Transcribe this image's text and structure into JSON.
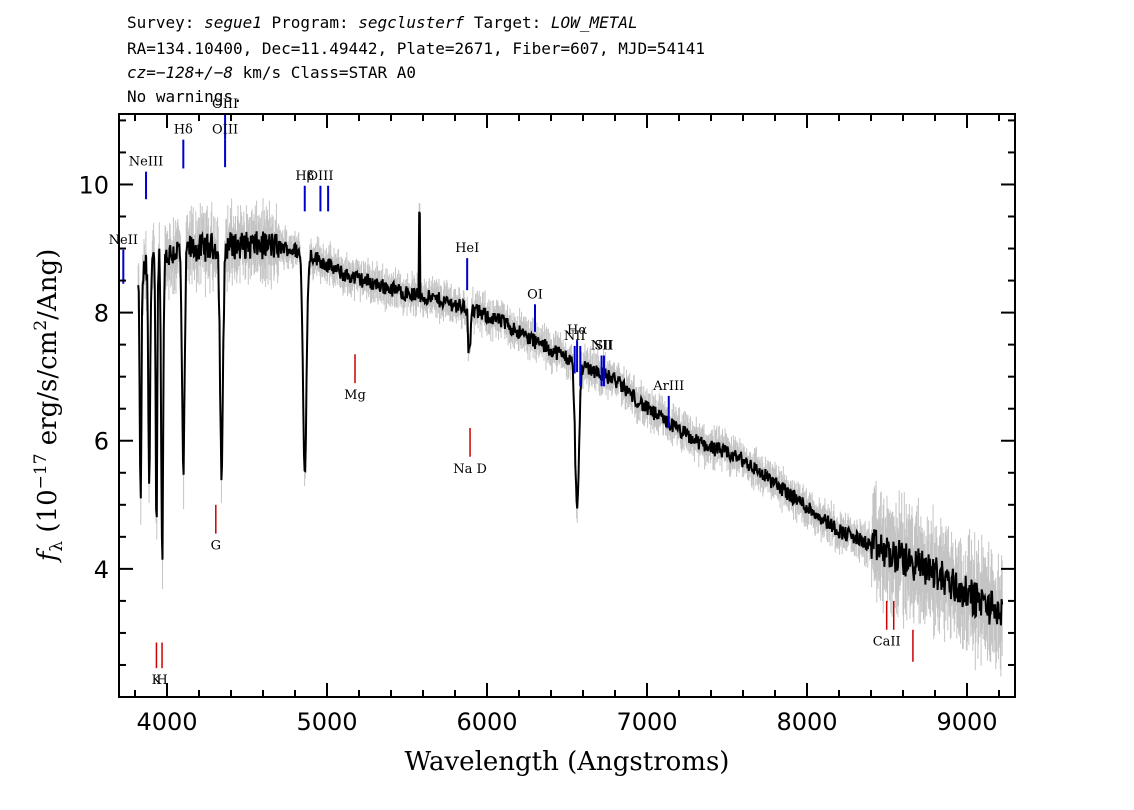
{
  "header": {
    "line1": {
      "survey_label": "Survey:",
      "survey": "segue1",
      "program_label": "Program:",
      "program": "segclusterf",
      "target_label": "Target:",
      "target": "LOW_METAL"
    },
    "line2": "RA=134.10400, Dec=11.49442, Plate=2671, Fiber=607, MJD=54141",
    "line3": {
      "cz_label": "cz=",
      "cz_value": "−128+/−8",
      "rest": " km/s Class=STAR A0"
    },
    "line4": "No warnings."
  },
  "chart_data": {
    "type": "line",
    "xlabel": "Wavelength (Angstroms)",
    "ylabel_parts": {
      "f": "f",
      "sub": "λ",
      "open": " (10",
      "exp": "−17",
      "mid": " erg/s/cm",
      "exp2": "2",
      "close": "/Ang)"
    },
    "xlim": [
      3700,
      9300
    ],
    "ylim": [
      2.0,
      11.1
    ],
    "xticks": [
      4000,
      5000,
      6000,
      7000,
      8000,
      9000
    ],
    "xtick_labels": [
      "4000",
      "5000",
      "6000",
      "7000",
      "8000",
      "9000"
    ],
    "yticks": [
      4,
      6,
      8,
      10
    ],
    "ytick_labels": [
      "4",
      "6",
      "8",
      "10"
    ],
    "continuum": [
      [
        3820,
        8.4
      ],
      [
        3900,
        8.9
      ],
      [
        4000,
        8.9
      ],
      [
        4100,
        9.0
      ],
      [
        4200,
        9.0
      ],
      [
        4350,
        9.05
      ],
      [
        4500,
        9.05
      ],
      [
        4650,
        9.05
      ],
      [
        4750,
        9.0
      ],
      [
        4900,
        8.9
      ],
      [
        5100,
        8.6
      ],
      [
        5300,
        8.45
      ],
      [
        5500,
        8.3
      ],
      [
        5700,
        8.2
      ],
      [
        5900,
        8.05
      ],
      [
        6100,
        7.85
      ],
      [
        6300,
        7.55
      ],
      [
        6500,
        7.3
      ],
      [
        6800,
        6.95
      ],
      [
        7000,
        6.5
      ],
      [
        7300,
        6.0
      ],
      [
        7600,
        5.7
      ],
      [
        7900,
        5.15
      ],
      [
        8200,
        4.6
      ],
      [
        8500,
        4.25
      ],
      [
        8800,
        3.95
      ],
      [
        9000,
        3.6
      ],
      [
        9220,
        3.3
      ]
    ],
    "absorption_features": [
      {
        "center": 3835,
        "depth": 3.6,
        "width": 5
      },
      {
        "center": 3889,
        "depth": 3.5,
        "width": 6
      },
      {
        "center": 3934,
        "depth": 4.5,
        "width": 5
      },
      {
        "center": 3970,
        "depth": 4.8,
        "width": 6
      },
      {
        "center": 4102,
        "depth": 3.6,
        "width": 8
      },
      {
        "center": 4341,
        "depth": 3.6,
        "width": 9
      },
      {
        "center": 4861,
        "depth": 3.4,
        "width": 11
      },
      {
        "center": 5890,
        "depth": 1.0,
        "width": 6
      },
      {
        "center": 6563,
        "depth": 2.3,
        "width": 12
      }
    ],
    "spikes": [
      {
        "center": 5577,
        "height": 1.3
      },
      {
        "center": 5890,
        "height": 0.3
      }
    ],
    "spectrum_color": "#000000",
    "error_color": "#c4c4c4",
    "emission_color": "#0000cc",
    "absorption_color": "#cc0000",
    "emission_lines": [
      {
        "label": "NeII",
        "wavelength": 3727,
        "top": 8.98,
        "bottom": 8.45
      },
      {
        "label": "NeIII",
        "wavelength": 3869,
        "top": 10.2,
        "bottom": 9.77
      },
      {
        "label": "Hδ",
        "wavelength": 4102,
        "top": 10.7,
        "bottom": 10.25
      },
      {
        "label": "OIII",
        "wavelength": 4363,
        "top": 11.1,
        "bottom": 10.7
      },
      {
        "label": "OIII",
        "wavelength": 4363,
        "top": 10.7,
        "bottom": 10.27
      },
      {
        "label": "Hβ",
        "wavelength": 4861,
        "top": 9.98,
        "bottom": 9.58
      },
      {
        "label": "OIII",
        "wavelength": 4959,
        "top": 9.98,
        "bottom": 9.58
      },
      {
        "label": "",
        "wavelength": 5007,
        "top": 9.98,
        "bottom": 9.58
      },
      {
        "label": "HeI",
        "wavelength": 5876,
        "top": 8.85,
        "bottom": 8.35
      },
      {
        "label": "OI",
        "wavelength": 6300,
        "top": 8.13,
        "bottom": 7.7
      },
      {
        "label": "NII",
        "wavelength": 6548,
        "top": 7.48,
        "bottom": 7.05
      },
      {
        "label": "Hα",
        "wavelength": 6563,
        "top": 7.57,
        "bottom": 7.07
      },
      {
        "label": "",
        "wavelength": 6583,
        "top": 7.48,
        "bottom": 6.85
      },
      {
        "label": "NII",
        "wavelength": 6716,
        "top": 7.33,
        "bottom": 6.85
      },
      {
        "label": "SII",
        "wavelength": 6731,
        "top": 7.33,
        "bottom": 6.85
      },
      {
        "label": "ArIII",
        "wavelength": 7136,
        "top": 6.7,
        "bottom": 6.2
      }
    ],
    "absorption_lines": [
      {
        "label": "K",
        "wavelength": 3934,
        "top": 2.85,
        "bottom": 2.45
      },
      {
        "label": "H",
        "wavelength": 3969,
        "top": 2.85,
        "bottom": 2.45
      },
      {
        "label": "G",
        "wavelength": 4305,
        "top": 5.0,
        "bottom": 4.55
      },
      {
        "label": "Mg",
        "wavelength": 5175,
        "top": 7.35,
        "bottom": 6.9
      },
      {
        "label": "Na D",
        "wavelength": 5894,
        "top": 6.2,
        "bottom": 5.75
      },
      {
        "label": "CaII",
        "wavelength": 8498,
        "top": 3.5,
        "bottom": 3.05
      },
      {
        "label": "",
        "wavelength": 8542,
        "top": 3.5,
        "bottom": 3.05
      },
      {
        "label": "",
        "wavelength": 8662,
        "top": 3.05,
        "bottom": 2.55
      }
    ]
  }
}
